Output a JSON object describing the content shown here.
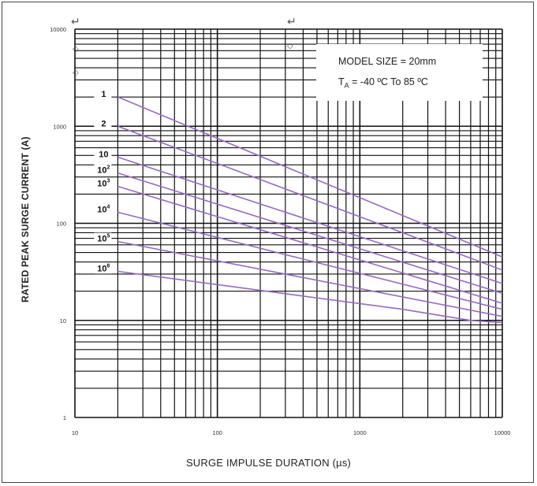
{
  "chart_data": {
    "type": "line",
    "x_scale": "log",
    "y_scale": "log",
    "xlim": [
      10,
      10000
    ],
    "ylim": [
      1,
      10000
    ],
    "x_tick_labels": [
      "10",
      "100",
      "1000",
      "10000"
    ],
    "y_tick_labels": [
      "10000",
      "1000",
      "100",
      "10",
      "1"
    ],
    "xlabel": "SURGE IMPULSE DURATION (µs)",
    "ylabel": "RATED PEAK SURGE CURRENT (A)",
    "grid": true,
    "annotation": {
      "line1": "MODEL SIZE = 20mm",
      "line2_prefix": "T",
      "line2_sub": "A",
      "line2_rest": " = -40 ºC To 85 ºC"
    },
    "series": [
      {
        "name": "1",
        "base": "1",
        "exp": "",
        "x": [
          20,
          10000
        ],
        "y": [
          2000,
          45
        ]
      },
      {
        "name": "2",
        "base": "2",
        "exp": "",
        "x": [
          20,
          10000
        ],
        "y": [
          1000,
          33
        ]
      },
      {
        "name": "10",
        "base": "10",
        "exp": "",
        "x": [
          20,
          10000
        ],
        "y": [
          480,
          24
        ]
      },
      {
        "name": "10^2",
        "base": "10",
        "exp": "2",
        "x": [
          20,
          10000
        ],
        "y": [
          330,
          19
        ]
      },
      {
        "name": "10^3",
        "base": "10",
        "exp": "3",
        "x": [
          20,
          10000
        ],
        "y": [
          240,
          15
        ]
      },
      {
        "name": "10^4",
        "base": "10",
        "exp": "4",
        "x": [
          20,
          10000
        ],
        "y": [
          130,
          13
        ]
      },
      {
        "name": "10^5",
        "base": "10",
        "exp": "5",
        "x": [
          20,
          10000
        ],
        "y": [
          65,
          11
        ]
      },
      {
        "name": "10^6",
        "base": "10",
        "exp": "6",
        "x": [
          20,
          2000,
          6000,
          10000
        ],
        "y": [
          32,
          13,
          10,
          9.5
        ]
      }
    ],
    "line_color": "#9966cc"
  }
}
